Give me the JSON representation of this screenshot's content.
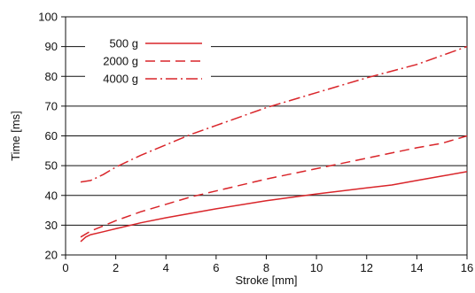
{
  "chart_data": {
    "type": "line",
    "xlabel": "Stroke [mm]",
    "ylabel": "Time [ms]",
    "xlim": [
      0,
      16
    ],
    "ylim": [
      20,
      100
    ],
    "xticks": [
      "0",
      "2",
      "4",
      "6",
      "8",
      "10",
      "12",
      "14",
      "16"
    ],
    "yticks": [
      "20",
      "30",
      "40",
      "50",
      "60",
      "70",
      "80",
      "90",
      "100"
    ],
    "grid": "horizontal",
    "legend_position": "top-left",
    "line_color": "#d9252a",
    "series": [
      {
        "name": "500 g",
        "dash": "solid",
        "x": [
          0.6,
          0.8,
          1,
          1.5,
          2,
          3,
          4,
          6,
          8,
          10,
          12,
          13,
          14,
          15,
          16
        ],
        "y": [
          24.5,
          26,
          26.8,
          27.8,
          28.8,
          30.8,
          32.5,
          35.5,
          38.2,
          40.5,
          42.5,
          43.5,
          45,
          46.5,
          48
        ]
      },
      {
        "name": "2000 g",
        "dash": "dashed",
        "x": [
          0.6,
          1,
          2,
          3,
          4,
          5,
          6,
          8,
          10,
          12,
          14,
          15,
          16
        ],
        "y": [
          26,
          28,
          31.5,
          34.5,
          37,
          39.5,
          41.5,
          45.5,
          49,
          52.5,
          56,
          57.5,
          60
        ]
      },
      {
        "name": "4000 g",
        "dash": "dashdot",
        "x": [
          0.6,
          1,
          1.5,
          2,
          3,
          4,
          5,
          6,
          8,
          10,
          12,
          14,
          16
        ],
        "y": [
          44.5,
          45,
          47,
          49.5,
          53.5,
          57,
          60.5,
          63.5,
          69.5,
          74.5,
          79.5,
          84,
          90
        ]
      }
    ]
  }
}
